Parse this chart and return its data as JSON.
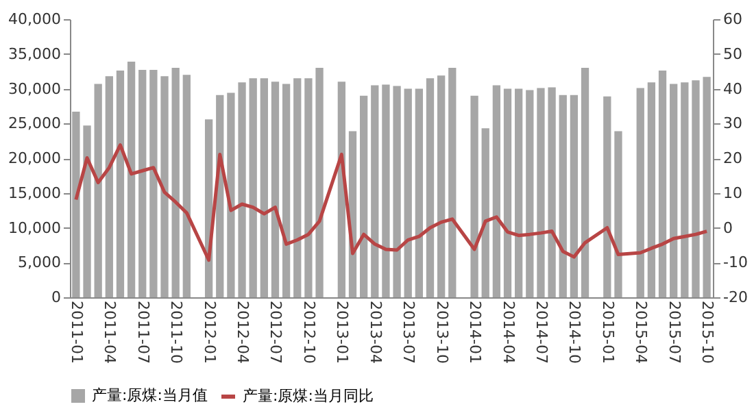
{
  "chart_data": {
    "type": "bar",
    "categories": [
      "2011-01",
      null,
      null,
      "2011-04",
      null,
      null,
      "2011-07",
      null,
      null,
      "2011-10",
      null,
      null,
      "2012-01",
      null,
      null,
      "2012-04",
      null,
      null,
      "2012-07",
      null,
      null,
      "2012-10",
      null,
      null,
      "2013-01",
      null,
      null,
      "2013-04",
      null,
      null,
      "2013-07",
      null,
      null,
      "2013-10",
      null,
      null,
      "2014-01",
      null,
      null,
      "2014-04",
      null,
      null,
      "2014-07",
      null,
      null,
      "2014-10",
      null,
      null,
      "2015-01",
      null,
      null,
      "2015-04",
      null,
      null,
      "2015-07",
      null,
      null,
      "2015-10"
    ],
    "series": [
      {
        "name": "产量:原煤:当月值",
        "color": "#a6a6a6",
        "values": [
          26700,
          24700,
          30700,
          31800,
          32600,
          33900,
          32700,
          32700,
          31800,
          33000,
          32000,
          null,
          25600,
          29100,
          29400,
          30900,
          31500,
          31500,
          31000,
          30700,
          31500,
          31500,
          33000,
          null,
          31000,
          23900,
          29000,
          30500,
          30600,
          30400,
          30000,
          30000,
          31500,
          31900,
          33000,
          null,
          29000,
          24300,
          30500,
          30000,
          30000,
          29800,
          30100,
          30200,
          29100,
          29100,
          33000,
          null,
          28900,
          23900,
          null,
          30100,
          30900,
          32600,
          30700,
          30900,
          31200,
          31700
        ]
      },
      {
        "name": "产量:原煤:当月同比",
        "color": "#b84545",
        "type": "line",
        "axis": "y2",
        "values": [
          8.1,
          20.1,
          13.0,
          17.3,
          23.8,
          15.5,
          16.4,
          17.3,
          10.2,
          7.4,
          4.3,
          null,
          -9.3,
          21.1,
          5.0,
          6.8,
          5.9,
          4.0,
          5.9,
          -4.7,
          -3.5,
          -1.9,
          1.9,
          null,
          21.1,
          -7.4,
          -1.9,
          -4.7,
          -6.2,
          -6.4,
          -3.5,
          -2.5,
          0,
          1.6,
          2.5,
          null,
          -6.2,
          1.9,
          3.1,
          -1.2,
          -2.2,
          -1.9,
          -1.5,
          -1.0,
          -6.8,
          -8.4,
          -4.3,
          null,
          0,
          -7.7,
          null,
          -7.2,
          -5.9,
          -4.7,
          -3.1,
          -2.5,
          -1.9,
          -1.0
        ]
      }
    ],
    "ylim": [
      0,
      40000
    ],
    "yticks": [
      0,
      {
        "value": 5000,
        "label": "5,000"
      },
      {
        "value": 10000,
        "label": "10,000"
      },
      {
        "value": 15000,
        "label": "15,000"
      },
      {
        "value": 20000,
        "label": "20,000"
      },
      {
        "value": 25000,
        "label": "25,000"
      },
      {
        "value": 30000,
        "label": "30,000"
      },
      {
        "value": 35000,
        "label": "35,000"
      },
      {
        "value": 40000,
        "label": "40,000"
      }
    ],
    "y2lim": [
      -20,
      60
    ],
    "y2ticks": [
      -20,
      -10,
      0,
      10,
      20,
      30,
      40,
      50,
      60
    ],
    "grid": false,
    "legend": "bottom",
    "line_style": "solid",
    "marker": "none"
  }
}
